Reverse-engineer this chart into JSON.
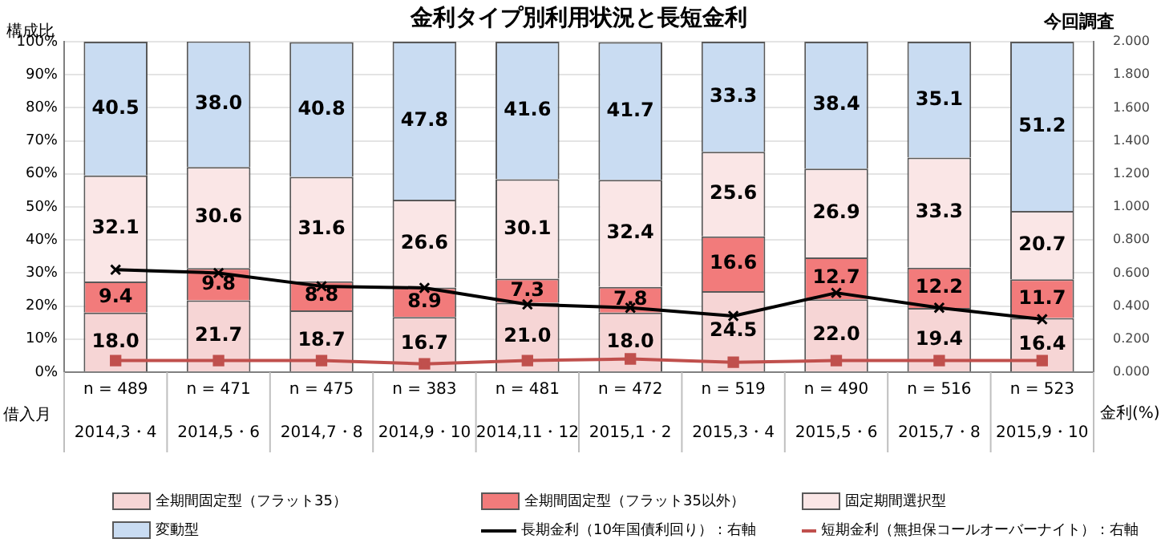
{
  "chart_data": {
    "type": "bar",
    "stacked": true,
    "title": "金利タイプ別利用状況と長短金利",
    "ylabel": "構成比",
    "y2label": "金利(%)",
    "xlabel": "借入月",
    "categories": [
      "2014,3・4",
      "2014,5・6",
      "2014,7・8",
      "2014,9・10",
      "2014,11・12",
      "2015,1・2",
      "2015,3・4",
      "2015,5・6",
      "2015,7・8",
      "2015,9・10"
    ],
    "series": [
      {
        "name": "全期間固定型（フラット35）",
        "color": "#f6d5d5",
        "values": [
          18.0,
          21.7,
          18.7,
          16.7,
          21.0,
          18.0,
          24.5,
          22.0,
          19.4,
          16.4
        ],
        "value_labels": [
          "18.0",
          "21.7",
          "18.7",
          "16.7",
          "21.0",
          "18.0",
          "24.5",
          "22.0",
          "19.4",
          "16.4"
        ]
      },
      {
        "name": "全期間固定型（フラット35以外）",
        "color": "#f27b7b",
        "values": [
          9.4,
          9.8,
          8.8,
          8.9,
          7.3,
          7.8,
          16.6,
          12.7,
          12.2,
          11.7
        ],
        "value_labels": [
          "9.4",
          "9.8",
          "8.8",
          "8.9",
          "7.3",
          "7.8",
          "16.6",
          "12.7",
          "12.2",
          "11.7"
        ]
      },
      {
        "name": "固定期間選択型",
        "color": "#fae6e6",
        "values": [
          32.1,
          30.6,
          31.6,
          26.6,
          30.1,
          32.4,
          25.6,
          26.9,
          33.3,
          20.7
        ],
        "value_labels": [
          "32.1",
          "30.6",
          "31.6",
          "26.6",
          "30.1",
          "32.4",
          "25.6",
          "26.9",
          "33.3",
          "20.7"
        ]
      },
      {
        "name": "変動型",
        "color": "#c9dcf2",
        "values": [
          40.5,
          38.0,
          40.8,
          47.8,
          41.6,
          41.7,
          33.3,
          38.4,
          35.1,
          51.2
        ],
        "value_labels": [
          "40.5",
          "38.0",
          "40.8",
          "47.8",
          "41.6",
          "41.7",
          "33.3",
          "38.4",
          "35.1",
          "51.2"
        ]
      },
      {
        "name": "長期金利（10年国債利回り）：右軸",
        "type": "line",
        "axis": "y2",
        "color": "#000000",
        "marker": "cross",
        "values": [
          0.62,
          0.6,
          0.52,
          0.51,
          0.41,
          0.39,
          0.34,
          0.48,
          0.39,
          0.32
        ]
      },
      {
        "name": "短期金利（無担保コールオーバーナイト）：右軸",
        "type": "line",
        "axis": "y2",
        "color": "#c0504d",
        "marker": "square",
        "values": [
          0.07,
          0.07,
          0.07,
          0.05,
          0.07,
          0.08,
          0.06,
          0.07,
          0.07,
          0.07
        ]
      }
    ],
    "ylim": [
      0,
      100
    ],
    "yticks": [
      {
        "value": 0,
        "label": "0%"
      },
      {
        "value": 10,
        "label": "10%"
      },
      {
        "value": 20,
        "label": "20%"
      },
      {
        "value": 30,
        "label": "30%"
      },
      {
        "value": 40,
        "label": "40%"
      },
      {
        "value": 50,
        "label": "50%"
      },
      {
        "value": 60,
        "label": "60%"
      },
      {
        "value": 70,
        "label": "70%"
      },
      {
        "value": 80,
        "label": "80%"
      },
      {
        "value": 90,
        "label": "90%"
      },
      {
        "value": 100,
        "label": "100%"
      }
    ],
    "y2lim": [
      0,
      2
    ],
    "y2ticks": [
      {
        "value": 0,
        "label": "0.000"
      },
      {
        "value": 0.2,
        "label": "0.200"
      },
      {
        "value": 0.4,
        "label": "0.400"
      },
      {
        "value": 0.6,
        "label": "0.600"
      },
      {
        "value": 0.8,
        "label": "0.800"
      },
      {
        "value": 1,
        "label": "1.000"
      },
      {
        "value": 1.2,
        "label": "1.200"
      },
      {
        "value": 1.4,
        "label": "1.400"
      },
      {
        "value": 1.6,
        "label": "1.600"
      },
      {
        "value": 1.8,
        "label": "1.800"
      },
      {
        "value": 2,
        "label": "2.000"
      }
    ],
    "grid": "y",
    "legend": "bottom",
    "annotations": [
      "今回調査",
      "n = 489",
      "n = 471",
      "n = 475",
      "n = 383",
      "n = 481",
      "n = 472",
      "n = 519",
      "n = 490",
      "n = 516",
      "n = 523"
    ]
  }
}
